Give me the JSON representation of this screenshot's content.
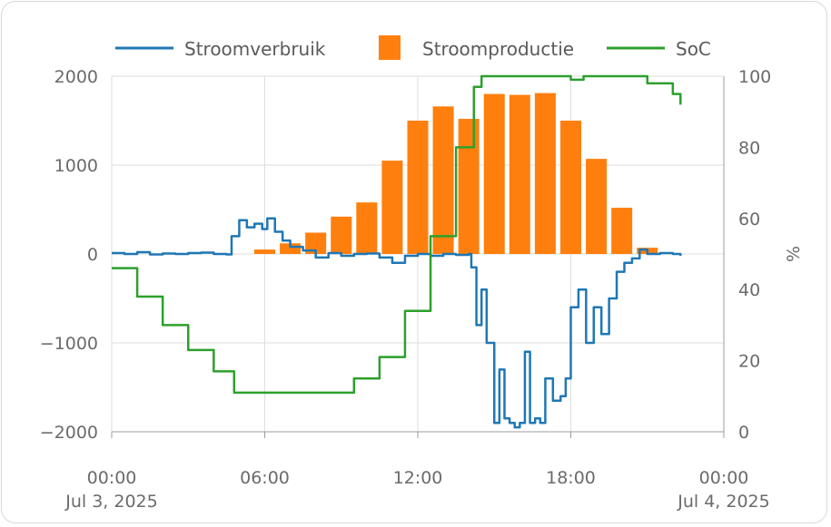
{
  "chart_data": {
    "type": "bar+line",
    "legend_position": "top",
    "grid": true,
    "series": [
      {
        "name": "Stroomverbruik",
        "type": "line",
        "axis": "left",
        "color": "#1f77b4",
        "points": [
          [
            0,
            10
          ],
          [
            0.5,
            0
          ],
          [
            1,
            20
          ],
          [
            1.5,
            -5
          ],
          [
            2,
            5
          ],
          [
            2.5,
            0
          ],
          [
            3,
            10
          ],
          [
            3.5,
            15
          ],
          [
            4,
            0
          ],
          [
            4.5,
            -5
          ],
          [
            4.7,
            200
          ],
          [
            5,
            380
          ],
          [
            5.3,
            300
          ],
          [
            5.6,
            340
          ],
          [
            5.9,
            280
          ],
          [
            6.1,
            400
          ],
          [
            6.4,
            250
          ],
          [
            6.7,
            150
          ],
          [
            7,
            80
          ],
          [
            7.5,
            40
          ],
          [
            8,
            -40
          ],
          [
            8.5,
            10
          ],
          [
            9,
            -20
          ],
          [
            9.5,
            0
          ],
          [
            10,
            5
          ],
          [
            10.5,
            -40
          ],
          [
            11,
            -100
          ],
          [
            11.5,
            -20
          ],
          [
            12,
            0
          ],
          [
            12.5,
            -20
          ],
          [
            13,
            0
          ],
          [
            13.5,
            -10
          ],
          [
            14,
            0
          ],
          [
            14.1,
            -150
          ],
          [
            14.3,
            -800
          ],
          [
            14.5,
            -400
          ],
          [
            14.7,
            -1000
          ],
          [
            15,
            -1900
          ],
          [
            15.2,
            -1300
          ],
          [
            15.4,
            -1850
          ],
          [
            15.6,
            -1900
          ],
          [
            15.8,
            -1950
          ],
          [
            16,
            -1900
          ],
          [
            16.2,
            -1100
          ],
          [
            16.4,
            -1900
          ],
          [
            16.6,
            -1850
          ],
          [
            16.8,
            -1900
          ],
          [
            17,
            -1400
          ],
          [
            17.3,
            -1650
          ],
          [
            17.6,
            -1600
          ],
          [
            17.8,
            -1400
          ],
          [
            18,
            -600
          ],
          [
            18.3,
            -400
          ],
          [
            18.6,
            -1000
          ],
          [
            18.9,
            -600
          ],
          [
            19.2,
            -900
          ],
          [
            19.5,
            -500
          ],
          [
            19.8,
            -200
          ],
          [
            20.1,
            -100
          ],
          [
            20.4,
            -50
          ],
          [
            20.7,
            50
          ],
          [
            21,
            0
          ],
          [
            21.5,
            10
          ],
          [
            22,
            0
          ],
          [
            22.3,
            -20
          ]
        ]
      },
      {
        "name": "Stroomproductie",
        "type": "bar",
        "axis": "left",
        "color": "#ff7f0e",
        "points": [
          [
            6,
            50
          ],
          [
            7,
            120
          ],
          [
            8,
            240
          ],
          [
            9,
            420
          ],
          [
            10,
            580
          ],
          [
            11,
            1050
          ],
          [
            12,
            1500
          ],
          [
            13,
            1660
          ],
          [
            14,
            1520
          ],
          [
            15,
            1800
          ],
          [
            16,
            1790
          ],
          [
            17,
            1810
          ],
          [
            18,
            1500
          ],
          [
            19,
            1070
          ],
          [
            20,
            520
          ],
          [
            21,
            70
          ]
        ]
      },
      {
        "name": "SoC",
        "type": "line",
        "axis": "right",
        "color": "#2ca02c",
        "points": [
          [
            0,
            46
          ],
          [
            1,
            38
          ],
          [
            2,
            30
          ],
          [
            3,
            23
          ],
          [
            4,
            17
          ],
          [
            4.8,
            11
          ],
          [
            8.5,
            11
          ],
          [
            9.5,
            15
          ],
          [
            10.5,
            21
          ],
          [
            11.5,
            34
          ],
          [
            12.5,
            55
          ],
          [
            13.5,
            80
          ],
          [
            14.2,
            97
          ],
          [
            14.5,
            100
          ],
          [
            17.8,
            100
          ],
          [
            18,
            99
          ],
          [
            18.5,
            100
          ],
          [
            20,
            100
          ],
          [
            21,
            98
          ],
          [
            22,
            95
          ],
          [
            22.3,
            92
          ]
        ]
      }
    ],
    "y_left": {
      "ticks": [
        2000,
        1000,
        0,
        -1000,
        -2000
      ],
      "tick_labels": [
        "2000",
        "1000",
        "0",
        "−1000",
        "−2000"
      ],
      "ylim": [
        -2000,
        2000
      ]
    },
    "y_right": {
      "label": "%",
      "ticks": [
        100,
        80,
        60,
        40,
        20,
        0
      ],
      "tick_labels": [
        "100",
        "80",
        "60",
        "40",
        "20",
        "0"
      ],
      "ylim": [
        0,
        100
      ]
    },
    "x": {
      "range_hours": [
        0,
        24
      ],
      "ticks": [
        {
          "hour": 0,
          "time": "00:00",
          "date": "Jul 3, 2025"
        },
        {
          "hour": 6,
          "time": "06:00",
          "date": ""
        },
        {
          "hour": 12,
          "time": "12:00",
          "date": ""
        },
        {
          "hour": 18,
          "time": "18:00",
          "date": ""
        },
        {
          "hour": 24,
          "time": "00:00",
          "date": "Jul 4, 2025"
        }
      ]
    }
  }
}
